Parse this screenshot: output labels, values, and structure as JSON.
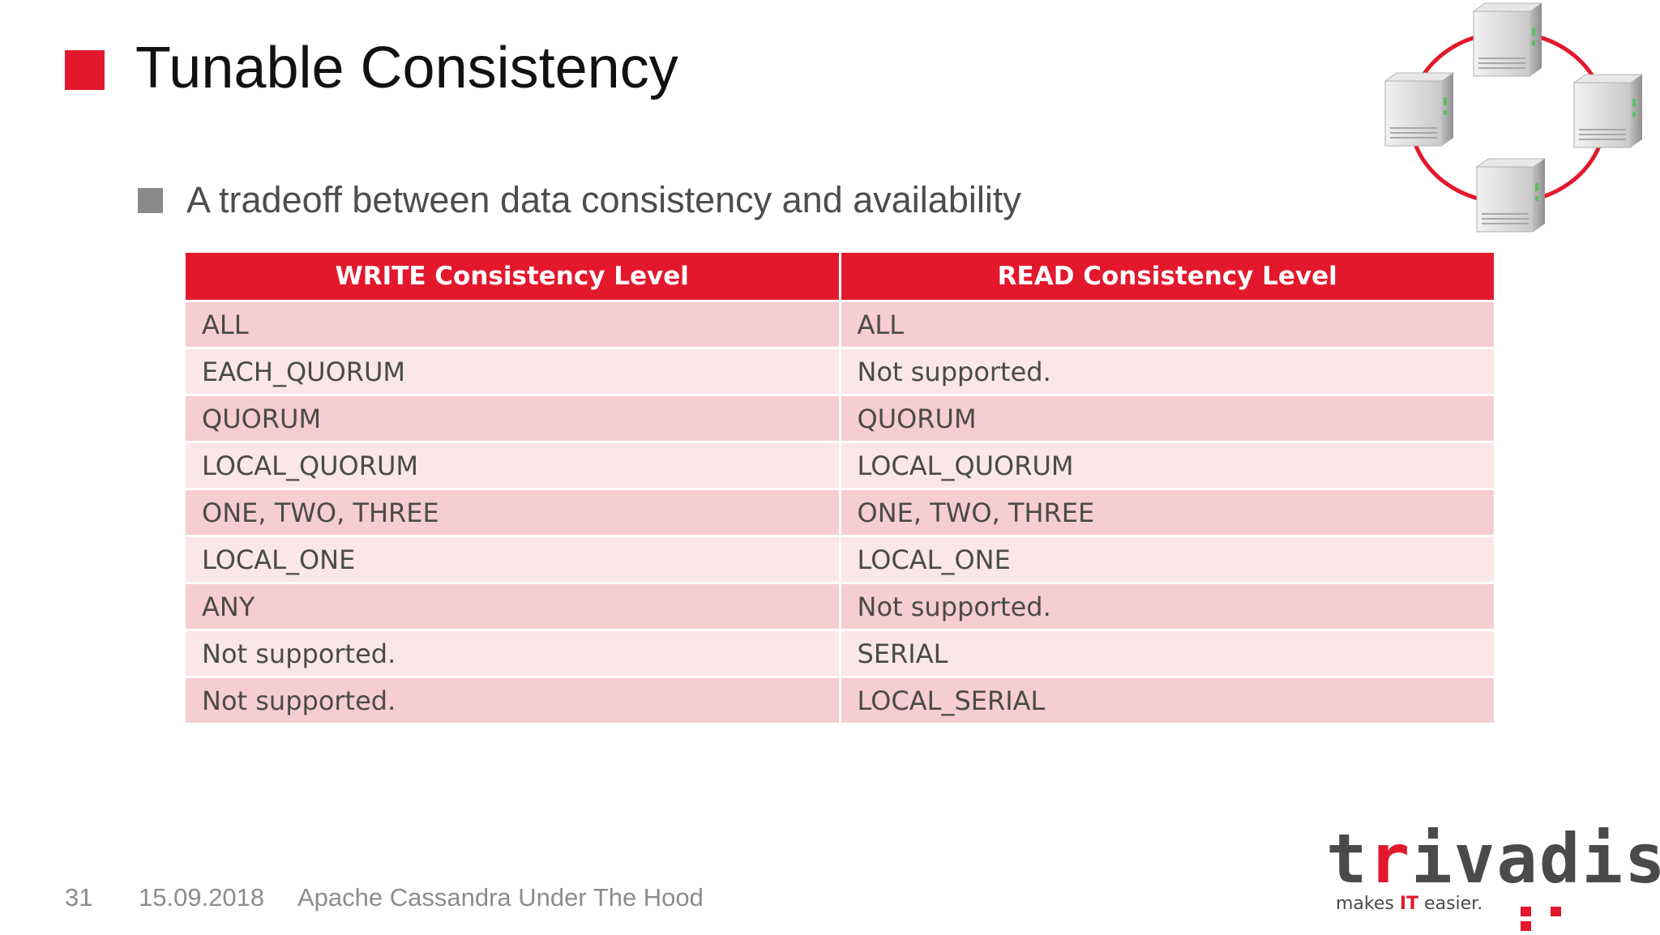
{
  "slide": {
    "title": "Tunable Consistency",
    "bullet": "A tradeoff between data consistency and availability"
  },
  "table": {
    "headers": [
      "WRITE Consistency Level",
      "READ Consistency Level"
    ],
    "rows": [
      [
        "ALL",
        "ALL"
      ],
      [
        "EACH_QUORUM",
        "Not supported."
      ],
      [
        "QUORUM",
        "QUORUM"
      ],
      [
        "LOCAL_QUORUM",
        "LOCAL_QUORUM"
      ],
      [
        "ONE, TWO, THREE",
        "ONE, TWO, THREE"
      ],
      [
        "LOCAL_ONE",
        "LOCAL_ONE"
      ],
      [
        "ANY",
        "Not supported."
      ],
      [
        "Not supported.",
        "SERIAL"
      ],
      [
        "Not supported.",
        "LOCAL_SERIAL"
      ]
    ]
  },
  "footer": {
    "page": "31",
    "date": "15.09.2018",
    "presentation": "Apache Cassandra Under The Hood"
  },
  "logo": {
    "word_start": "t",
    "word_red": "r",
    "word_end": "ivadis",
    "tagline_start": "makes ",
    "tagline_red": "IT",
    "tagline_end": " easier."
  },
  "colors": {
    "accent": "#e3182d",
    "row_dark": "#f6cdd1",
    "row_light": "#fbe6e8"
  },
  "icons": {
    "cluster": "server-ring-icon"
  }
}
